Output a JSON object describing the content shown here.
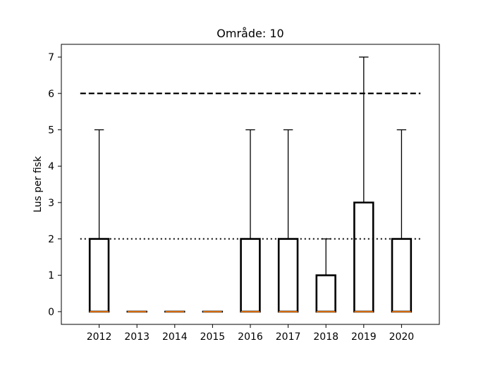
{
  "chart_data": {
    "type": "box",
    "title": "Område: 10",
    "xlabel": "",
    "ylabel": "Lus per fisk",
    "categories": [
      "2012",
      "2013",
      "2014",
      "2015",
      "2016",
      "2017",
      "2018",
      "2019",
      "2020"
    ],
    "boxes": [
      {
        "q1": 0,
        "median": 0,
        "q3": 2,
        "whisker_low": 0,
        "whisker_high": 5
      },
      {
        "q1": 0,
        "median": 0,
        "q3": 0,
        "whisker_low": 0,
        "whisker_high": 0
      },
      {
        "q1": 0,
        "median": 0,
        "q3": 0,
        "whisker_low": 0,
        "whisker_high": 0
      },
      {
        "q1": 0,
        "median": 0,
        "q3": 0,
        "whisker_low": 0,
        "whisker_high": 0
      },
      {
        "q1": 0,
        "median": 0,
        "q3": 2,
        "whisker_low": 0,
        "whisker_high": 5
      },
      {
        "q1": 0,
        "median": 0,
        "q3": 2,
        "whisker_low": 0,
        "whisker_high": 5
      },
      {
        "q1": 0,
        "median": 0,
        "q3": 1,
        "whisker_low": 0,
        "whisker_high": 2
      },
      {
        "q1": 0,
        "median": 0,
        "q3": 3,
        "whisker_low": 0,
        "whisker_high": 7
      },
      {
        "q1": 0,
        "median": 0,
        "q3": 2,
        "whisker_low": 0,
        "whisker_high": 5
      }
    ],
    "reference_lines": [
      {
        "y": 6,
        "style": "dashed"
      },
      {
        "y": 2,
        "style": "dotted"
      }
    ],
    "yticks": [
      0,
      1,
      2,
      3,
      4,
      5,
      6,
      7
    ],
    "ylim": [
      -0.35,
      7.35
    ],
    "grid": false,
    "colors": {
      "box": "#000000",
      "median": "#ff7f0e",
      "reference": "#000000"
    }
  }
}
